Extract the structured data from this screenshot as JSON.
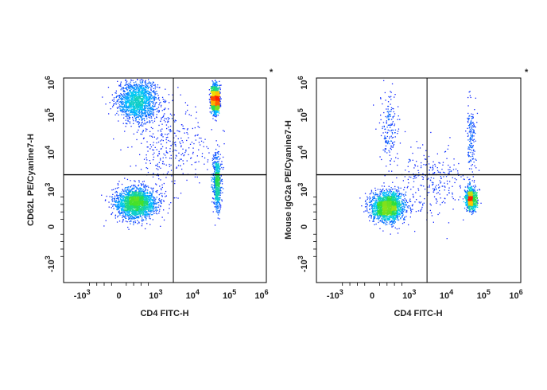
{
  "chart_data": [
    {
      "type": "scatter",
      "subtype": "flow-cytometry-density-dot-plot",
      "title": "",
      "corner_marker": "*",
      "xlabel": "CD4 FITC-H",
      "ylabel": "CD62L PE/Cyanine7-H",
      "axis_scale": "biexponential",
      "x_ticks": [
        {
          "value": -1000,
          "base": "-10",
          "exp": "3"
        },
        {
          "value": 0,
          "base": "0",
          "exp": ""
        },
        {
          "value": 1000,
          "base": "10",
          "exp": "3"
        },
        {
          "value": 10000,
          "base": "10",
          "exp": "4"
        },
        {
          "value": 100000,
          "base": "10",
          "exp": "5"
        },
        {
          "value": 1000000,
          "base": "10",
          "exp": "6"
        }
      ],
      "y_ticks": [
        {
          "value": -1000,
          "base": "-10",
          "exp": "3"
        },
        {
          "value": 0,
          "base": "0",
          "exp": ""
        },
        {
          "value": 1000,
          "base": "10",
          "exp": "3"
        },
        {
          "value": 10000,
          "base": "10",
          "exp": "4"
        },
        {
          "value": 100000,
          "base": "10",
          "exp": "5"
        },
        {
          "value": 1000000,
          "base": "10",
          "exp": "6"
        }
      ],
      "xlim": [
        -1500,
        1000000
      ],
      "ylim": [
        -1500,
        1000000
      ],
      "quadrant_gate": {
        "x": 3000,
        "y": 2500
      },
      "populations": [
        {
          "name": "CD4- CD62L+",
          "x_center": 500,
          "y_center": 25000,
          "relative_density": "high"
        },
        {
          "name": "CD4- CD62L-",
          "x_center": 500,
          "y_center": 700,
          "relative_density": "very high"
        },
        {
          "name": "CD4+ CD62L+",
          "x_center": 40000,
          "y_center": 28000,
          "relative_density": "very high"
        },
        {
          "name": "CD4+ CD62L-",
          "x_center": 45000,
          "y_center": 900,
          "relative_density": "medium"
        }
      ]
    },
    {
      "type": "scatter",
      "subtype": "flow-cytometry-density-dot-plot",
      "title": "",
      "corner_marker": "*",
      "xlabel": "CD4 FITC-H",
      "ylabel": "Mouse IgG2a PE/Cyanine7-H",
      "axis_scale": "biexponential",
      "x_ticks": [
        {
          "value": -1000,
          "base": "-10",
          "exp": "3"
        },
        {
          "value": 0,
          "base": "0",
          "exp": ""
        },
        {
          "value": 1000,
          "base": "10",
          "exp": "3"
        },
        {
          "value": 10000,
          "base": "10",
          "exp": "4"
        },
        {
          "value": 100000,
          "base": "10",
          "exp": "5"
        },
        {
          "value": 1000000,
          "base": "10",
          "exp": "6"
        }
      ],
      "y_ticks": [
        {
          "value": -1000,
          "base": "-10",
          "exp": "3"
        },
        {
          "value": 0,
          "base": "0",
          "exp": ""
        },
        {
          "value": 1000,
          "base": "10",
          "exp": "3"
        },
        {
          "value": 10000,
          "base": "10",
          "exp": "4"
        },
        {
          "value": 100000,
          "base": "10",
          "exp": "5"
        },
        {
          "value": 1000000,
          "base": "10",
          "exp": "6"
        }
      ],
      "xlim": [
        -1500,
        1000000
      ],
      "ylim": [
        -1500,
        1000000
      ],
      "quadrant_gate": {
        "x": 3000,
        "y": 2500
      },
      "populations": [
        {
          "name": "CD4- isotype-",
          "x_center": 500,
          "y_center": 600,
          "relative_density": "very high"
        },
        {
          "name": "CD4+ isotype-",
          "x_center": 45000,
          "y_center": 700,
          "relative_density": "high"
        },
        {
          "name": "CD4- sparse streak",
          "x_center": 400,
          "y_center": 20000,
          "relative_density": "low"
        },
        {
          "name": "CD4+ sparse streak",
          "x_center": 45000,
          "y_center": 15000,
          "relative_density": "low"
        }
      ]
    }
  ],
  "colors": {
    "density_low": "#1a1aff",
    "density_mid_low": "#00c8ff",
    "density_mid": "#30e030",
    "density_mid_high": "#ffe000",
    "density_high": "#ff2000",
    "axis": "#000000",
    "gate": "#000000"
  }
}
